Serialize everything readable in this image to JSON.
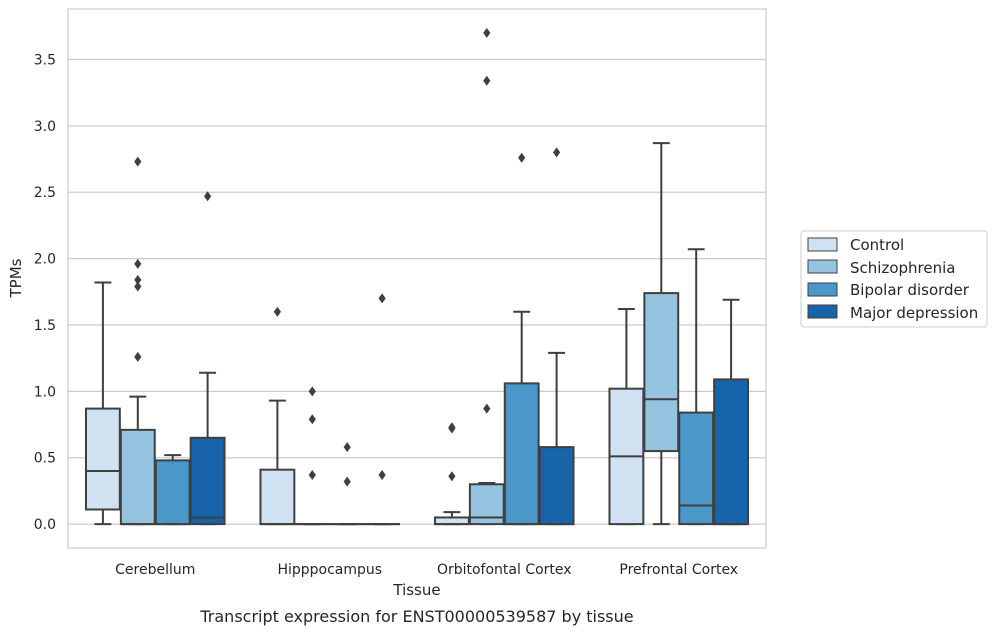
{
  "chart_data": {
    "type": "box",
    "title": "",
    "caption": "Transcript expression for ENST00000539587 by tissue",
    "xlabel": "Tissue",
    "ylabel": "TPMs",
    "ylim": [
      -0.18,
      3.88
    ],
    "yticks": [
      "0.0",
      "0.5",
      "1.0",
      "1.5",
      "2.0",
      "2.5",
      "3.0",
      "3.5"
    ],
    "grid": "horizontal",
    "legend_position": "right",
    "categories": [
      "Cerebellum",
      "Hipppocampus",
      "Orbitofontal Cortex",
      "Prefrontal Cortex"
    ],
    "series": [
      {
        "name": "Control",
        "color": "#d0e1f2",
        "boxes": [
          {
            "whislo": 0.0,
            "q1": 0.11,
            "med": 0.4,
            "q3": 0.87,
            "whishi": 1.82,
            "fliers": []
          },
          {
            "whislo": 0.0,
            "q1": 0.0,
            "med": 0.0,
            "q3": 0.41,
            "whishi": 0.93,
            "fliers": [
              1.6
            ]
          },
          {
            "whislo": 0.0,
            "q1": 0.0,
            "med": 0.0,
            "q3": 0.05,
            "whishi": 0.09,
            "fliers": [
              0.36,
              0.72,
              0.73
            ]
          },
          {
            "whislo": 0.0,
            "q1": 0.0,
            "med": 0.51,
            "q3": 1.02,
            "whishi": 1.62,
            "fliers": []
          }
        ]
      },
      {
        "name": "Schizophrenia",
        "color": "#94c4df",
        "boxes": [
          {
            "whislo": 0.0,
            "q1": 0.0,
            "med": 0.0,
            "q3": 0.71,
            "whishi": 0.96,
            "fliers": [
              1.26,
              1.79,
              1.84,
              1.96,
              2.73
            ]
          },
          {
            "whislo": 0.0,
            "q1": 0.0,
            "med": 0.0,
            "q3": 0.0,
            "whishi": 0.0,
            "fliers": [
              0.37,
              0.79,
              1.0
            ]
          },
          {
            "whislo": 0.0,
            "q1": 0.0,
            "med": 0.05,
            "q3": 0.3,
            "whishi": 0.31,
            "fliers": [
              0.87,
              3.34,
              3.7
            ]
          },
          {
            "whislo": 0.0,
            "q1": 0.55,
            "med": 0.94,
            "q3": 1.74,
            "whishi": 2.87,
            "fliers": []
          }
        ]
      },
      {
        "name": "Bipolar disorder",
        "color": "#4a98c9",
        "boxes": [
          {
            "whislo": 0.0,
            "q1": 0.0,
            "med": 0.0,
            "q3": 0.48,
            "whishi": 0.52,
            "fliers": []
          },
          {
            "whislo": 0.0,
            "q1": 0.0,
            "med": 0.0,
            "q3": 0.0,
            "whishi": 0.0,
            "fliers": [
              0.32,
              0.58
            ]
          },
          {
            "whislo": 0.0,
            "q1": 0.0,
            "med": 0.0,
            "q3": 1.06,
            "whishi": 1.6,
            "fliers": [
              2.76
            ]
          },
          {
            "whislo": 0.0,
            "q1": 0.0,
            "med": 0.14,
            "q3": 0.84,
            "whishi": 2.07,
            "fliers": []
          }
        ]
      },
      {
        "name": "Major depression",
        "color": "#1764ab",
        "boxes": [
          {
            "whislo": 0.0,
            "q1": 0.0,
            "med": 0.05,
            "q3": 0.65,
            "whishi": 1.14,
            "fliers": [
              2.47
            ]
          },
          {
            "whislo": 0.0,
            "q1": 0.0,
            "med": 0.0,
            "q3": 0.0,
            "whishi": 0.0,
            "fliers": [
              0.37,
              1.7
            ]
          },
          {
            "whislo": 0.0,
            "q1": 0.0,
            "med": 0.0,
            "q3": 0.58,
            "whishi": 1.29,
            "fliers": [
              2.8
            ]
          },
          {
            "whislo": 0.0,
            "q1": 0.0,
            "med": 0.0,
            "q3": 1.09,
            "whishi": 1.69,
            "fliers": []
          }
        ]
      }
    ]
  }
}
